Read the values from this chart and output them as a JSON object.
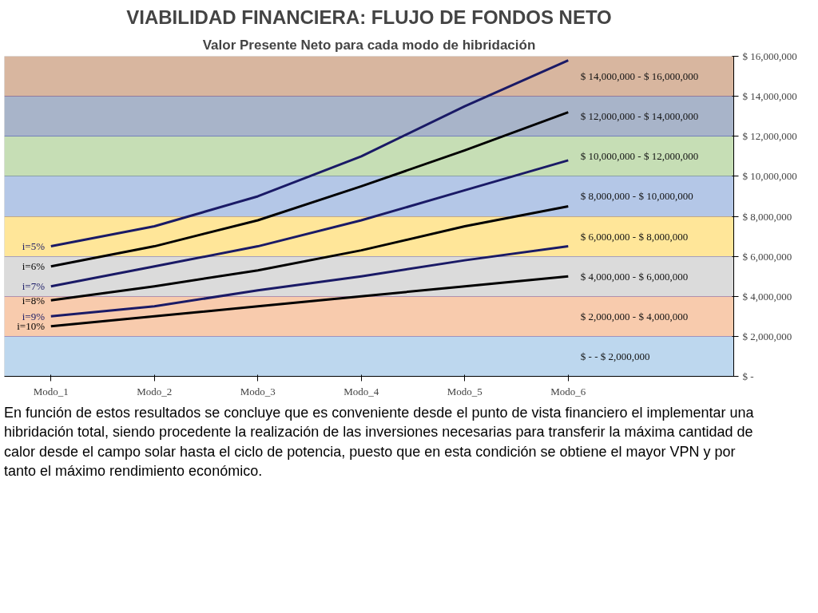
{
  "chart_data": {
    "type": "line",
    "title": "VIABILIDAD FINANCIERA: FLUJO DE FONDOS NETO",
    "subtitle": "Valor Presente Neto para cada modo de hibridación",
    "categories": [
      "Modo_1",
      "Modo_2",
      "Modo_3",
      "Modo_4",
      "Modo_5",
      "Modo_6"
    ],
    "series": [
      {
        "name": "i=10%",
        "color": "#000000",
        "values": [
          2500000,
          3000000,
          3500000,
          4000000,
          4500000,
          5000000
        ]
      },
      {
        "name": "i=9%",
        "color": "#1a1a66",
        "values": [
          3000000,
          3500000,
          4300000,
          5000000,
          5800000,
          6500000
        ]
      },
      {
        "name": "i=8%",
        "color": "#000000",
        "values": [
          3800000,
          4500000,
          5300000,
          6300000,
          7500000,
          8500000
        ]
      },
      {
        "name": "i=7%",
        "color": "#1a1a66",
        "values": [
          4500000,
          5500000,
          6500000,
          7800000,
          9300000,
          10800000
        ]
      },
      {
        "name": "i=6%",
        "color": "#000000",
        "values": [
          5500000,
          6500000,
          7800000,
          9500000,
          11300000,
          13200000
        ]
      },
      {
        "name": "i=5%",
        "color": "#1a1a66",
        "values": [
          6500000,
          7500000,
          9000000,
          11000000,
          13500000,
          15800000
        ]
      }
    ],
    "ylim": [
      0,
      16000000
    ],
    "yticks": [
      {
        "value": 0,
        "label": "$ -"
      },
      {
        "value": 2000000,
        "label": "$ 2,000,000"
      },
      {
        "value": 4000000,
        "label": "$ 4,000,000"
      },
      {
        "value": 6000000,
        "label": "$ 6,000,000"
      },
      {
        "value": 8000000,
        "label": "$ 8,000,000"
      },
      {
        "value": 10000000,
        "label": "$ 10,000,000"
      },
      {
        "value": 12000000,
        "label": "$ 12,000,000"
      },
      {
        "value": 14000000,
        "label": "$ 14,000,000"
      },
      {
        "value": 16000000,
        "label": "$ 16,000,000"
      }
    ],
    "bands": [
      {
        "axis": "y",
        "from": 0,
        "to": 2000000,
        "label": "$ -   - $ 2,000,000",
        "color": "#5b9bd5"
      },
      {
        "axis": "y",
        "from": 2000000,
        "to": 4000000,
        "label": "$ 2,000,000 - $ 4,000,000",
        "color": "#ed7d31"
      },
      {
        "axis": "y",
        "from": 4000000,
        "to": 6000000,
        "label": "$ 4,000,000 - $ 6,000,000",
        "color": "#a5a5a5"
      },
      {
        "axis": "y",
        "from": 6000000,
        "to": 8000000,
        "label": "$ 6,000,000 - $ 8,000,000",
        "color": "#ffc000"
      },
      {
        "axis": "y",
        "from": 8000000,
        "to": 10000000,
        "label": "$ 8,000,000 - $ 10,000,000",
        "color": "#4472c4"
      },
      {
        "axis": "y",
        "from": 10000000,
        "to": 12000000,
        "label": "$ 10,000,000 - $ 12,000,000",
        "color": "#70ad47"
      },
      {
        "axis": "y",
        "from": 12000000,
        "to": 14000000,
        "label": "$ 12,000,000 - $ 14,000,000",
        "color": "#264478"
      },
      {
        "axis": "y",
        "from": 14000000,
        "to": 16000000,
        "label": "$ 14,000,000 - $ 16,000,000",
        "color": "#9e480e"
      }
    ],
    "grid": "y",
    "annotations": [
      "En función de estos resultados se concluye que es conveniente desde el punto de vista financiero el implementar una hibridación total, siendo procedente la realización de las inversiones necesarias para transferir la máxima cantidad de calor desde el campo solar hasta el ciclo de potencia, puesto que en esta condición se obtiene el mayor VPN y por tanto el máximo rendimiento económico."
    ]
  }
}
